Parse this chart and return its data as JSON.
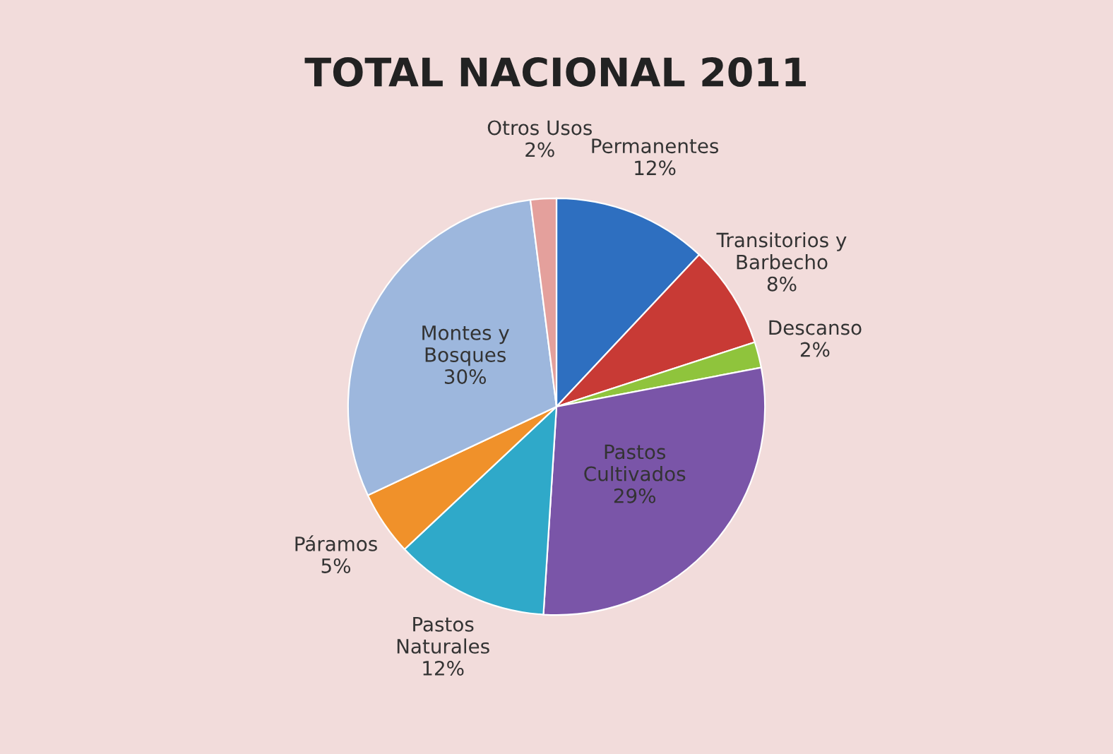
{
  "chart_data": {
    "type": "pie",
    "title": "TOTAL NACIONAL 2011",
    "categories": [
      "Permanentes",
      "Transitorios y\nBarbecho",
      "Descanso",
      "Pastos\nCultivados",
      "Pastos\nNaturales",
      "Páramos",
      "Montes y\nBosques",
      "Otros Usos"
    ],
    "values": [
      12,
      8,
      2,
      29,
      12,
      5,
      30,
      2
    ],
    "colors": [
      "#2e6fc0",
      "#c83a35",
      "#8fc43c",
      "#7a55a8",
      "#2fa9c9",
      "#f0912a",
      "#9db7dd",
      "#e4a09c"
    ],
    "value_labels": [
      "12%",
      "8%",
      "2%",
      "29%",
      "12%",
      "5%",
      "30%",
      "2%"
    ]
  }
}
